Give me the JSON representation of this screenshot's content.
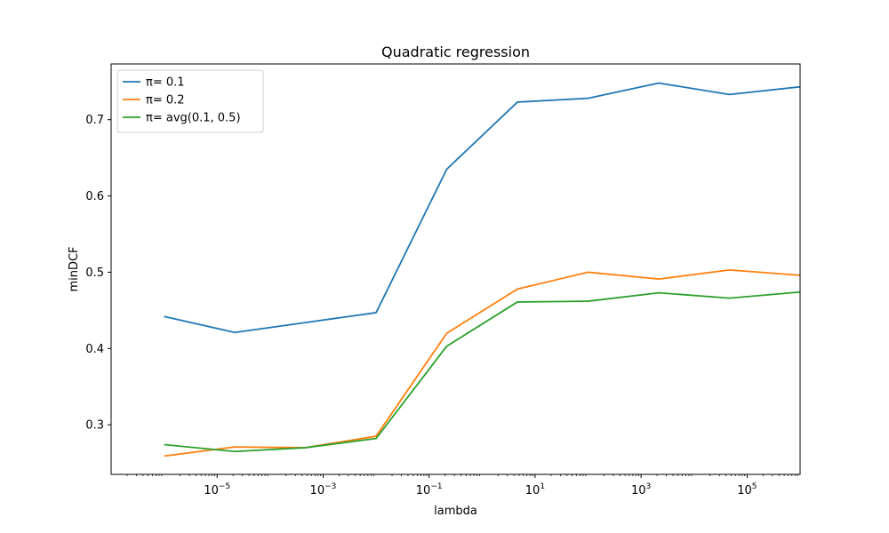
{
  "chart_data": {
    "type": "line",
    "title": "Quadratic regression",
    "xlabel": "lambda",
    "ylabel": "minDCF",
    "xscale": "log",
    "xlim": [
      1e-07,
      1000000
    ],
    "ylim": [
      0.235,
      0.773
    ],
    "x_ticks": [
      {
        "value": 1e-05,
        "base": "10",
        "exp": "−5"
      },
      {
        "value": 0.001,
        "base": "10",
        "exp": "−3"
      },
      {
        "value": 0.1,
        "base": "10",
        "exp": "−1"
      },
      {
        "value": 10,
        "base": "10",
        "exp": "1"
      },
      {
        "value": 1000,
        "base": "10",
        "exp": "3"
      },
      {
        "value": 100000,
        "base": "10",
        "exp": "5"
      }
    ],
    "y_ticks": [
      {
        "value": 0.3,
        "label": "0.3"
      },
      {
        "value": 0.4,
        "label": "0.4"
      },
      {
        "value": 0.5,
        "label": "0.5"
      },
      {
        "value": 0.6,
        "label": "0.6"
      },
      {
        "value": 0.7,
        "label": "0.7"
      }
    ],
    "x": [
      1e-06,
      2.15e-05,
      0.000464,
      0.01,
      0.215,
      4.64,
      100,
      2150,
      46400,
      1000000
    ],
    "series": [
      {
        "name": "π= 0.1",
        "color": "#1f77b4",
        "values": [
          0.442,
          0.421,
          0.434,
          0.447,
          0.635,
          0.723,
          0.728,
          0.748,
          0.733,
          0.743
        ]
      },
      {
        "name": "π= 0.2",
        "color": "#ff7f0e",
        "values": [
          0.259,
          0.271,
          0.27,
          0.285,
          0.42,
          0.478,
          0.5,
          0.491,
          0.503,
          0.496
        ]
      },
      {
        "name": "π= avg(0.1, 0.5)",
        "color": "#2ca02c",
        "values": [
          0.274,
          0.265,
          0.27,
          0.282,
          0.403,
          0.461,
          0.462,
          0.473,
          0.466,
          0.474
        ]
      }
    ],
    "grid": false,
    "legend_position": "top-left"
  }
}
